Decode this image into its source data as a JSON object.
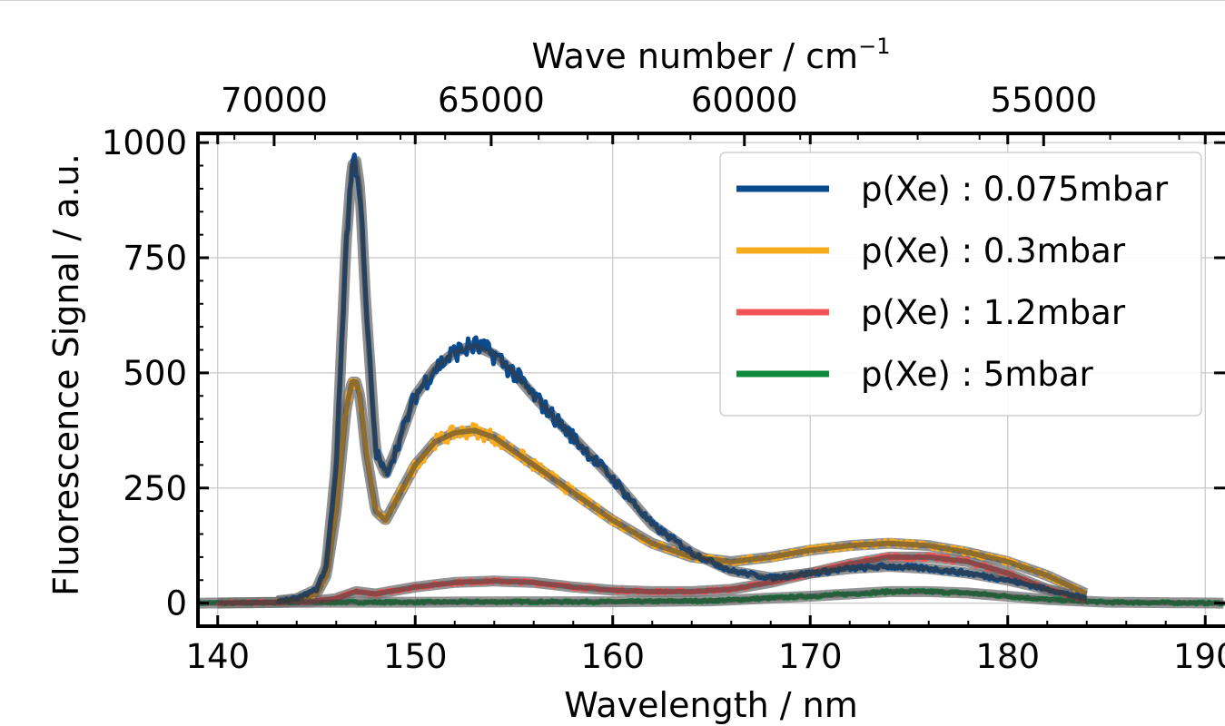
{
  "chart_data": {
    "type": "line",
    "xlabel": "Wavelength / nm",
    "ylabel": "Fluorescence Signal / a.u.",
    "top_xlabel_main": "Wave number / cm",
    "top_xlabel_sup": "−1",
    "xlim": [
      139,
      191
    ],
    "ylim": [
      -50,
      1020
    ],
    "xticks": [
      140,
      150,
      160,
      170,
      180,
      190
    ],
    "yticks": [
      0,
      250,
      500,
      750,
      1000
    ],
    "top_ticks": [
      70000,
      65000,
      60000,
      55000
    ],
    "grid": true,
    "legend_position": "top-right",
    "series": [
      {
        "name": "p(Xe) : 0.075mbar",
        "color": "#0a4a8f",
        "x": [
          143,
          144,
          145,
          145.5,
          146,
          146.5,
          146.8,
          147,
          147.2,
          147.5,
          148,
          148.5,
          149,
          150,
          151,
          152,
          153,
          154,
          155,
          156,
          158,
          160,
          162,
          164,
          166,
          168,
          170,
          172,
          174,
          176,
          178,
          180,
          182,
          184
        ],
        "y": [
          5,
          10,
          30,
          80,
          300,
          780,
          950,
          960,
          900,
          650,
          330,
          280,
          330,
          450,
          510,
          545,
          560,
          540,
          500,
          450,
          360,
          270,
          170,
          110,
          70,
          55,
          65,
          75,
          80,
          75,
          65,
          50,
          30,
          10
        ]
      },
      {
        "name": "p(Xe) : 0.3mbar",
        "color": "#f9ab1e",
        "x": [
          143,
          144,
          145,
          145.5,
          146,
          146.5,
          146.8,
          147,
          147.2,
          147.5,
          148,
          148.5,
          149,
          150,
          151,
          152,
          153,
          154,
          155,
          156,
          158,
          160,
          162,
          164,
          166,
          168,
          170,
          172,
          174,
          176,
          178,
          180,
          182,
          184
        ],
        "y": [
          3,
          8,
          20,
          60,
          200,
          420,
          480,
          480,
          450,
          330,
          200,
          180,
          220,
          300,
          350,
          370,
          375,
          360,
          330,
          300,
          240,
          180,
          130,
          100,
          90,
          100,
          115,
          125,
          130,
          125,
          110,
          90,
          60,
          20
        ]
      },
      {
        "name": "p(Xe) : 1.2mbar",
        "color": "#f55454",
        "x": [
          140,
          143,
          145,
          146,
          147,
          148,
          150,
          152,
          154,
          156,
          158,
          160,
          162,
          164,
          166,
          168,
          170,
          172,
          174,
          176,
          178,
          180,
          182,
          184
        ],
        "y": [
          0,
          2,
          5,
          10,
          25,
          20,
          35,
          45,
          48,
          45,
          35,
          28,
          25,
          25,
          30,
          45,
          65,
          85,
          100,
          100,
          90,
          65,
          30,
          5
        ]
      },
      {
        "name": "p(Xe) : 5mbar",
        "color": "#0f8a3c",
        "x": [
          139,
          145,
          150,
          155,
          160,
          165,
          170,
          172,
          174,
          176,
          178,
          180,
          182,
          185,
          191
        ],
        "y": [
          0,
          2,
          2,
          3,
          3,
          5,
          15,
          20,
          25,
          25,
          22,
          15,
          8,
          2,
          0
        ]
      }
    ]
  }
}
